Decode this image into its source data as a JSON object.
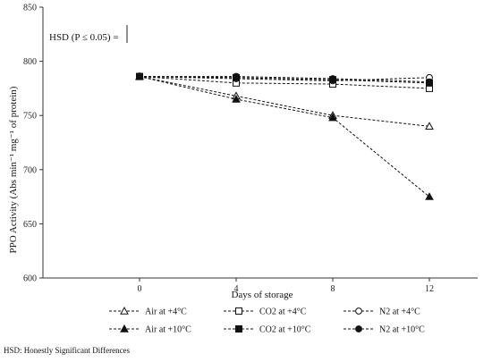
{
  "chart_data": {
    "type": "line",
    "title": "",
    "xlabel": "Days of storage",
    "ylabel": "PPO Activity (Abs min⁻¹ mg⁻¹ of protein)",
    "x": [
      0,
      4,
      8,
      12
    ],
    "xlim": [
      -4,
      14
    ],
    "ylim": [
      600,
      850
    ],
    "yticks": [
      600,
      650,
      700,
      750,
      800,
      850
    ],
    "grid": false,
    "legend_position": "bottom",
    "series": [
      {
        "name": "Air at +4°C",
        "marker": "triangle-open",
        "values": [
          786,
          768,
          750,
          740
        ]
      },
      {
        "name": "CO2 at +4°C",
        "marker": "square-open",
        "values": [
          786,
          780,
          779,
          775
        ]
      },
      {
        "name": "N2 at +4°C",
        "marker": "circle-open",
        "values": [
          786,
          784,
          782,
          785
        ]
      },
      {
        "name": "Air at +10°C",
        "marker": "triangle-filled",
        "values": [
          786,
          765,
          748,
          675
        ]
      },
      {
        "name": "CO2 at +10°C",
        "marker": "square-filled",
        "values": [
          786,
          785,
          783,
          780
        ]
      },
      {
        "name": "N2 at +10°C",
        "marker": "circle-filled",
        "values": [
          786,
          786,
          784,
          781
        ]
      }
    ],
    "annotation": {
      "text": "HSD (P ≤ 0.05) ="
    }
  },
  "footnote": "HSD: Honestly Significant Differences"
}
